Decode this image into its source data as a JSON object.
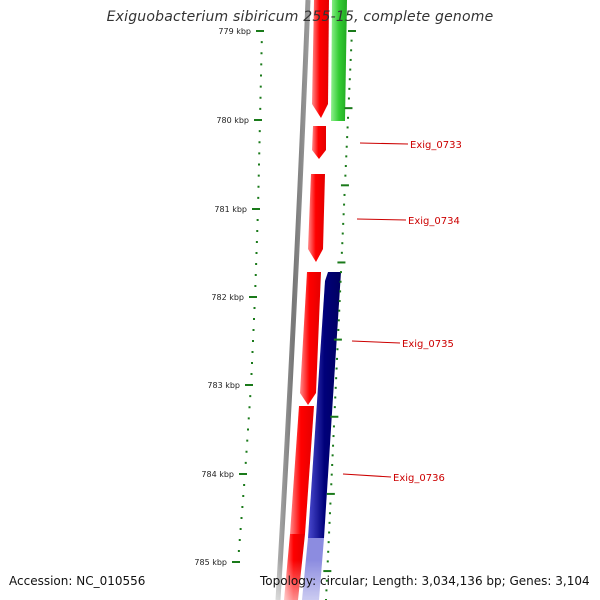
{
  "title": "Exiguobacterium sibiricum 255-15, complete genome",
  "footer": {
    "accession": "Accession: NC_010556",
    "summary": "Topology: circular; Length: 3,034,136 bp; Genes: 3,104"
  },
  "colors": {
    "forward_gene": "#ff0000",
    "reverse_gene": "#00008b",
    "rna_gene": "#33cc33",
    "backbone": "#777777",
    "tick": "#1a7a1a",
    "label": "#cc0000"
  },
  "scale": {
    "unit": "kbp",
    "major_ticks": [
      {
        "kbp": 779,
        "label": "779 kbp"
      },
      {
        "kbp": 780,
        "label": "780 kbp"
      },
      {
        "kbp": 781,
        "label": "781 kbp"
      },
      {
        "kbp": 782,
        "label": "782 kbp"
      },
      {
        "kbp": 783,
        "label": "783 kbp"
      },
      {
        "kbp": 784,
        "label": "784 kbp"
      },
      {
        "kbp": 785,
        "label": "785 kbp"
      }
    ]
  },
  "genes": [
    {
      "name": "Exig_0733",
      "strand": "forward"
    },
    {
      "name": "Exig_0734",
      "strand": "forward"
    },
    {
      "name": "Exig_0735",
      "strand": "reverse"
    },
    {
      "name": "Exig_0736",
      "strand": "reverse"
    }
  ]
}
